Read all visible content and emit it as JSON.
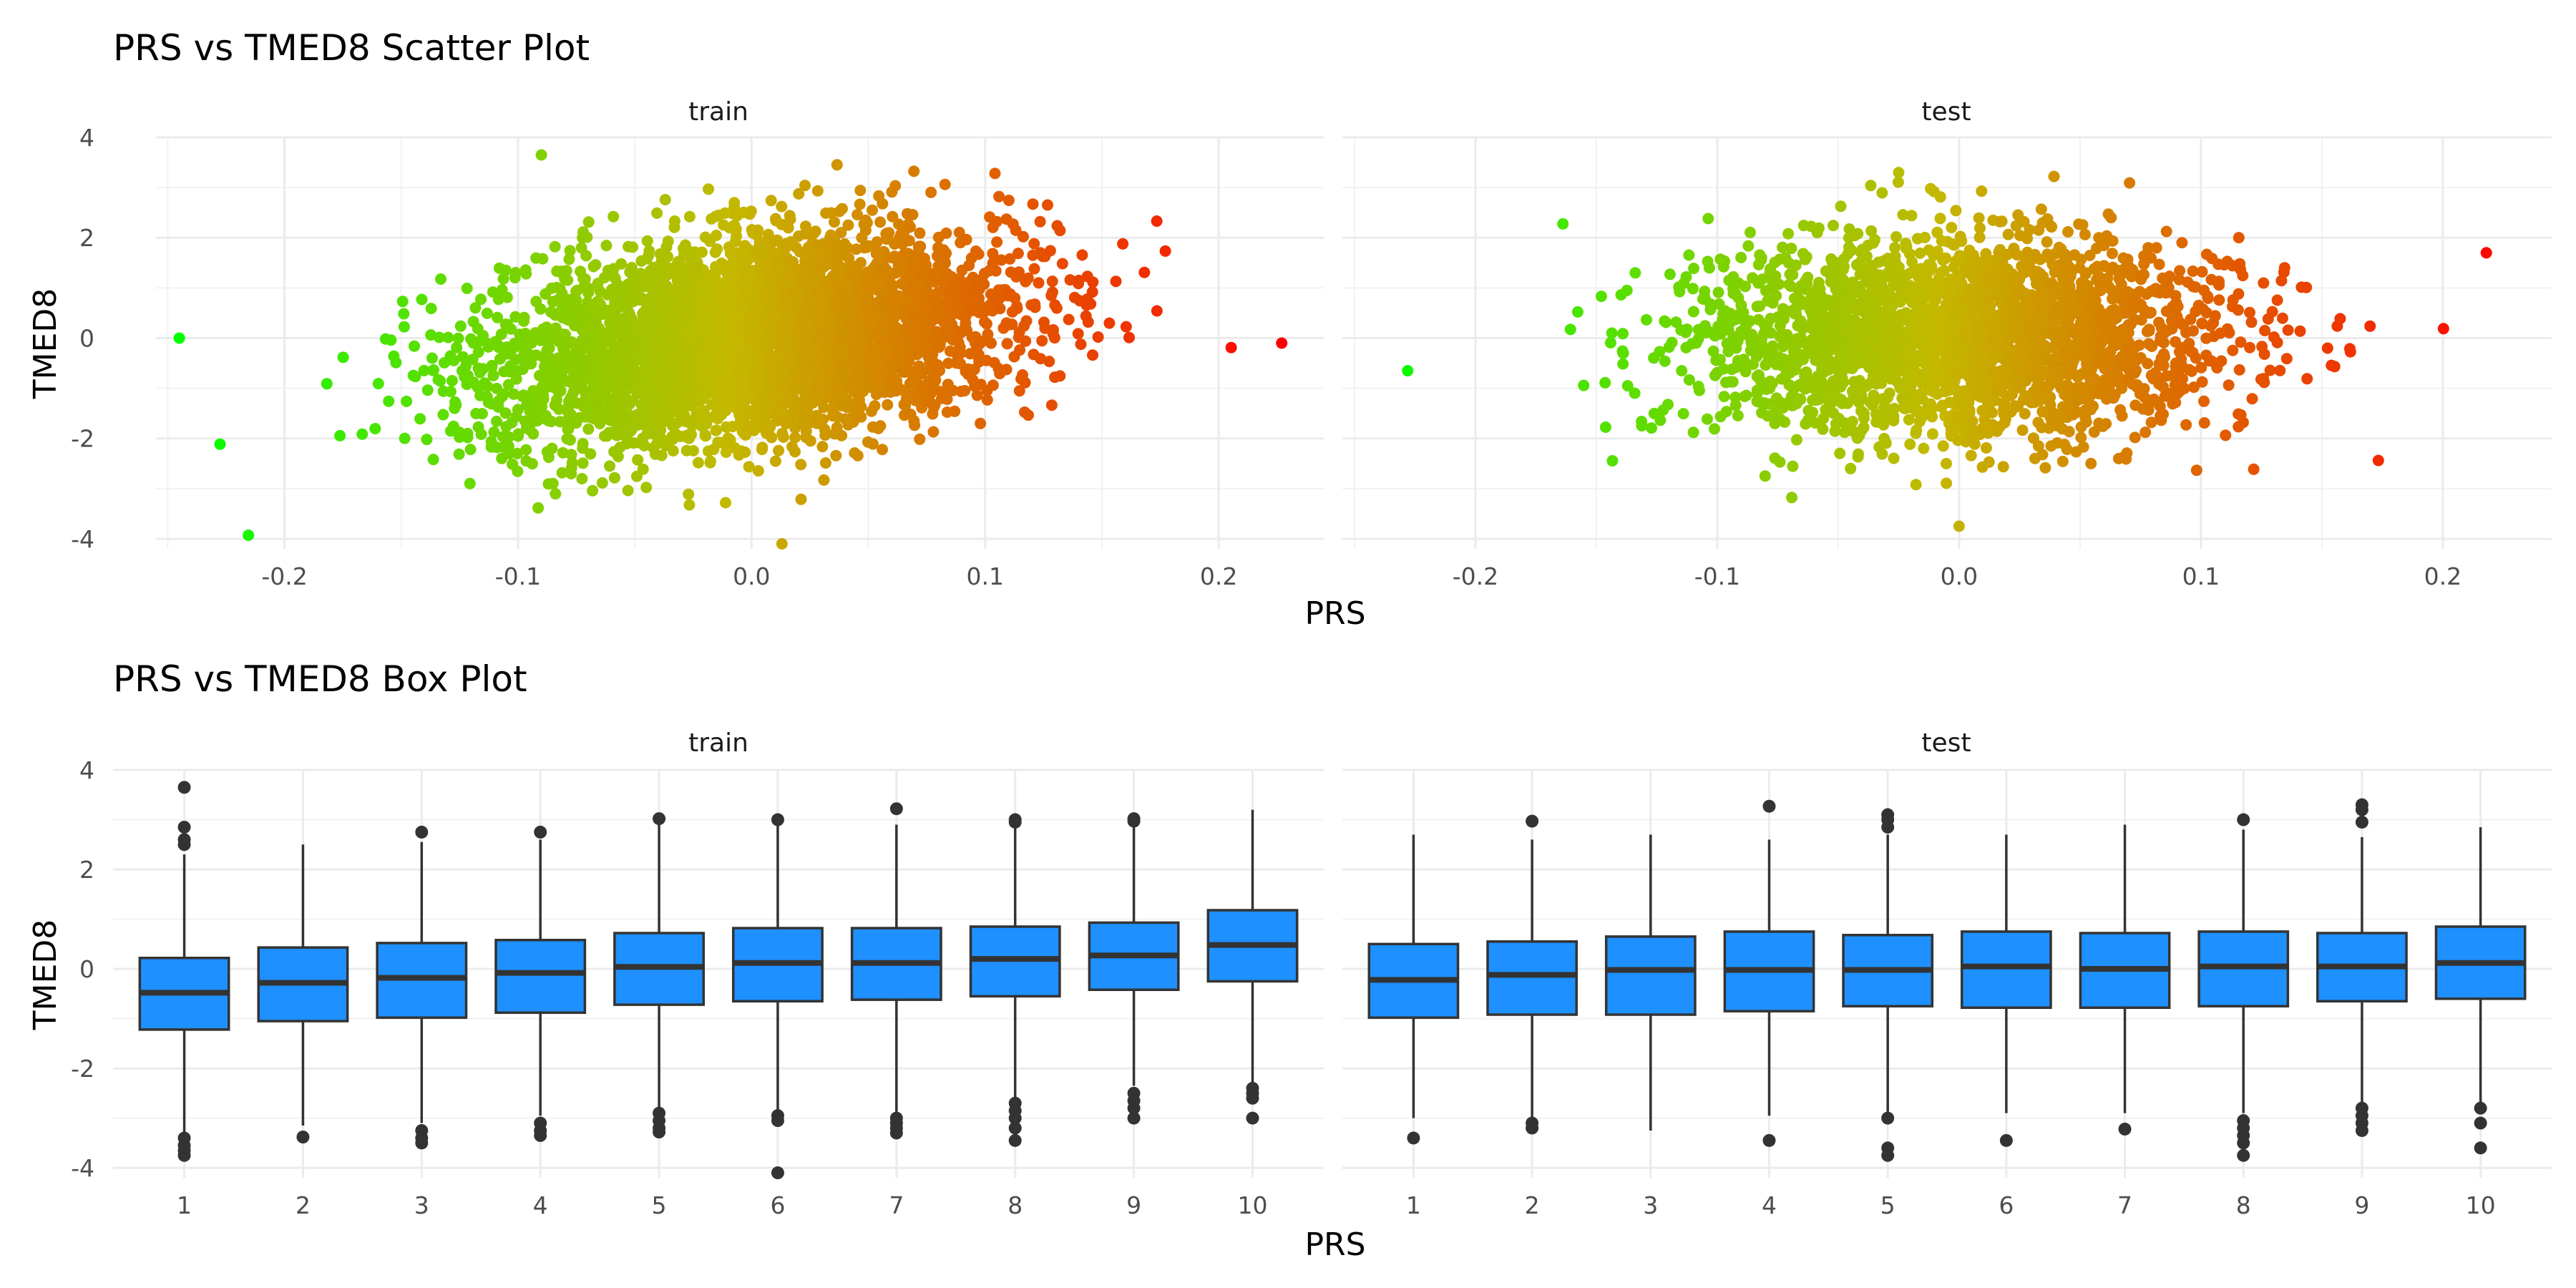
{
  "chart_data": [
    {
      "type": "scatter",
      "title": "PRS vs TMED8 Scatter Plot",
      "xlabel": "PRS",
      "ylabel": "TMED8",
      "facets": [
        "train",
        "test"
      ],
      "xlim": [
        -0.255,
        0.245
      ],
      "ylim": [
        -4.2,
        4.0
      ],
      "xticks": [
        -0.2,
        -0.1,
        0.0,
        0.1,
        0.2
      ],
      "xtick_labels": [
        "-0.2",
        "-0.1",
        "0.0",
        "0.1",
        "0.2"
      ],
      "yticks": [
        -4,
        -2,
        0,
        2,
        4
      ],
      "ytick_labels": [
        "-4",
        "-2",
        "0",
        "2",
        "4"
      ],
      "grid": true,
      "color_gradient": {
        "low": "#00ff00",
        "high": "#ff0000",
        "mapped_to": "PRS"
      },
      "series": [
        {
          "facet": "train",
          "x_range": [
            -0.245,
            0.227
          ],
          "y_range": [
            -4.1,
            3.65
          ],
          "extreme_points": [
            {
              "x": -0.245,
              "y": 0.0
            },
            {
              "x": -0.09,
              "y": 3.65
            },
            {
              "x": 0.013,
              "y": -4.1
            },
            {
              "x": 0.227,
              "y": -0.1
            }
          ]
        },
        {
          "facet": "test",
          "x_range": [
            -0.228,
            0.218
          ],
          "y_range": [
            -3.8,
            3.3
          ],
          "extreme_points": [
            {
              "x": -0.228,
              "y": -0.65
            },
            {
              "x": -0.025,
              "y": 3.3
            },
            {
              "x": 0.0,
              "y": -3.75
            },
            {
              "x": 0.218,
              "y": 1.7
            }
          ]
        }
      ]
    },
    {
      "type": "box",
      "title": "PRS vs TMED8 Box Plot",
      "xlabel": "PRS",
      "ylabel": "TMED8",
      "facets": [
        "train",
        "test"
      ],
      "categories": [
        "1",
        "2",
        "3",
        "4",
        "5",
        "6",
        "7",
        "8",
        "9",
        "10"
      ],
      "ylim": [
        -4.2,
        4.0
      ],
      "yticks": [
        -4,
        -2,
        0,
        2,
        4
      ],
      "ytick_labels": [
        "-4",
        "-2",
        "0",
        "2",
        "4"
      ],
      "box_color": "#1e90ff",
      "grid": true,
      "series": [
        {
          "facet": "train",
          "boxes": [
            {
              "q1": -1.22,
              "median": -0.48,
              "q3": 0.22,
              "whisker_low": -3.3,
              "whisker_high": 2.3,
              "outliers": [
                3.65,
                2.85,
                2.6,
                2.5,
                -3.4,
                -3.55,
                -3.65,
                -3.75
              ]
            },
            {
              "q1": -1.05,
              "median": -0.28,
              "q3": 0.43,
              "whisker_low": -3.15,
              "whisker_high": 2.5,
              "outliers": [
                -3.38
              ]
            },
            {
              "q1": -0.98,
              "median": -0.18,
              "q3": 0.52,
              "whisker_low": -3.1,
              "whisker_high": 2.55,
              "outliers": [
                2.75,
                -3.25,
                -3.4,
                -3.5
              ]
            },
            {
              "q1": -0.88,
              "median": -0.08,
              "q3": 0.58,
              "whisker_low": -2.95,
              "whisker_high": 2.6,
              "outliers": [
                2.75,
                -3.1,
                -3.25,
                -3.35
              ]
            },
            {
              "q1": -0.72,
              "median": 0.04,
              "q3": 0.72,
              "whisker_low": -2.8,
              "whisker_high": 2.9,
              "outliers": [
                3.02,
                -2.9,
                -3.05,
                -3.2,
                -3.28
              ]
            },
            {
              "q1": -0.65,
              "median": 0.12,
              "q3": 0.82,
              "whisker_low": -2.85,
              "whisker_high": 2.95,
              "outliers": [
                3.0,
                -2.95,
                -3.05,
                -4.1
              ]
            },
            {
              "q1": -0.62,
              "median": 0.12,
              "q3": 0.82,
              "whisker_low": -2.9,
              "whisker_high": 2.9,
              "outliers": [
                3.22,
                -3.0,
                -3.1,
                -3.2,
                -3.3
              ]
            },
            {
              "q1": -0.55,
              "median": 0.2,
              "q3": 0.85,
              "whisker_low": -2.6,
              "whisker_high": 2.95,
              "outliers": [
                3.0,
                2.95,
                -2.7,
                -2.85,
                -3.0,
                -3.2,
                -3.45
              ]
            },
            {
              "q1": -0.42,
              "median": 0.27,
              "q3": 0.93,
              "whisker_low": -2.35,
              "whisker_high": 2.95,
              "outliers": [
                3.02,
                2.97,
                -2.5,
                -2.65,
                -2.8,
                -3.0
              ]
            },
            {
              "q1": -0.25,
              "median": 0.48,
              "q3": 1.18,
              "whisker_low": -2.3,
              "whisker_high": 3.2,
              "outliers": [
                -2.4,
                -2.5,
                -2.6,
                -3.0
              ]
            }
          ]
        },
        {
          "facet": "test",
          "boxes": [
            {
              "q1": -0.98,
              "median": -0.22,
              "q3": 0.5,
              "whisker_low": -3.0,
              "whisker_high": 2.7,
              "outliers": [
                -3.4
              ]
            },
            {
              "q1": -0.92,
              "median": -0.12,
              "q3": 0.55,
              "whisker_low": -3.0,
              "whisker_high": 2.6,
              "outliers": [
                2.97,
                -3.1,
                -3.2
              ]
            },
            {
              "q1": -0.92,
              "median": -0.02,
              "q3": 0.65,
              "whisker_low": -3.25,
              "whisker_high": 2.7,
              "outliers": []
            },
            {
              "q1": -0.85,
              "median": -0.02,
              "q3": 0.75,
              "whisker_low": -2.95,
              "whisker_high": 2.6,
              "outliers": [
                3.27,
                -3.45
              ]
            },
            {
              "q1": -0.75,
              "median": -0.02,
              "q3": 0.68,
              "whisker_low": -2.9,
              "whisker_high": 2.7,
              "outliers": [
                3.1,
                3.0,
                2.85,
                -3.0,
                -3.6,
                -3.75
              ]
            },
            {
              "q1": -0.78,
              "median": 0.05,
              "q3": 0.75,
              "whisker_low": -2.9,
              "whisker_high": 2.7,
              "outliers": [
                -3.45
              ]
            },
            {
              "q1": -0.78,
              "median": 0.0,
              "q3": 0.72,
              "whisker_low": -2.9,
              "whisker_high": 2.9,
              "outliers": [
                -3.22
              ]
            },
            {
              "q1": -0.75,
              "median": 0.05,
              "q3": 0.75,
              "whisker_low": -2.9,
              "whisker_high": 2.8,
              "outliers": [
                3.0,
                -3.05,
                -3.2,
                -3.35,
                -3.5,
                -3.75
              ]
            },
            {
              "q1": -0.65,
              "median": 0.05,
              "q3": 0.72,
              "whisker_low": -2.8,
              "whisker_high": 2.65,
              "outliers": [
                3.3,
                3.2,
                2.95,
                -2.8,
                -2.95,
                -3.1,
                -3.25
              ]
            },
            {
              "q1": -0.6,
              "median": 0.12,
              "q3": 0.85,
              "whisker_low": -2.7,
              "whisker_high": 2.85,
              "outliers": [
                -2.8,
                -3.1,
                -3.6
              ]
            }
          ]
        }
      ]
    }
  ]
}
